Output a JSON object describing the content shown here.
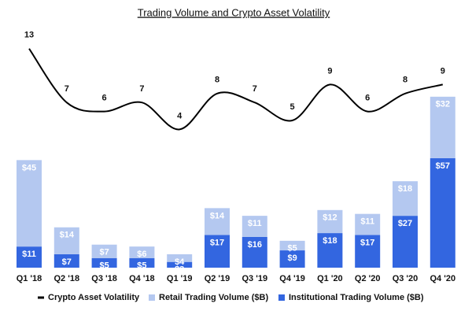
{
  "chart_data": {
    "type": "bar",
    "stacked": true,
    "title": "Trading Volume and Crypto Asset Volatility",
    "categories": [
      "Q1 '18",
      "Q2 '18",
      "Q3 '18",
      "Q4 '18",
      "Q1 '19",
      "Q2 '19",
      "Q3 '19",
      "Q4 '19",
      "Q1 '20",
      "Q2 '20",
      "Q3 '20",
      "Q4 '20"
    ],
    "series": [
      {
        "name": "Crypto Asset Volatility",
        "type": "line",
        "color": "#000000",
        "values": [
          13,
          7,
          6,
          7,
          4,
          8,
          7,
          5,
          9,
          6,
          8,
          9
        ]
      },
      {
        "name": "Retail Trading Volume ($B)",
        "type": "bar",
        "color": "#b4c8f0",
        "values": [
          45,
          14,
          7,
          6,
          4,
          14,
          11,
          5,
          12,
          11,
          18,
          32
        ],
        "value_labels": [
          "$45",
          "$14",
          "$7",
          "$6",
          "$4",
          "$14",
          "$11",
          "$5",
          "$12",
          "$11",
          "$18",
          "$32"
        ]
      },
      {
        "name": "Institutional Trading Volume ($B)",
        "type": "bar",
        "color": "#3366e0",
        "values": [
          11,
          7,
          5,
          5,
          3,
          17,
          16,
          9,
          18,
          17,
          27,
          57
        ],
        "value_labels": [
          "$11",
          "$7",
          "$5",
          "$5",
          "$3",
          "$17",
          "$16",
          "$9",
          "$18",
          "$17",
          "$27",
          "$57"
        ]
      }
    ]
  }
}
